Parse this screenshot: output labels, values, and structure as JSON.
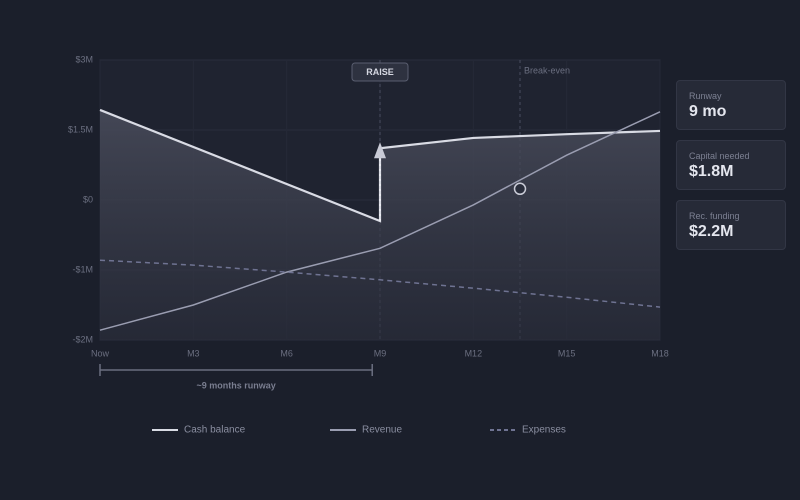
{
  "chart_data": {
    "type": "line",
    "xlim": [
      0,
      18
    ],
    "xticks": [
      {
        "value": 0,
        "label": "Now"
      },
      {
        "value": 3,
        "label": "M3"
      },
      {
        "value": 6,
        "label": "M6"
      },
      {
        "value": 9,
        "label": "M9"
      },
      {
        "value": 12,
        "label": "M12"
      },
      {
        "value": 15,
        "label": "M15"
      },
      {
        "value": 18,
        "label": "M18"
      }
    ],
    "ylim": [
      -2,
      3
    ],
    "yticks": [
      {
        "value": -2,
        "label": "-$2M"
      },
      {
        "value": -1,
        "label": "-$1M"
      },
      {
        "value": 0,
        "label": "$0"
      },
      {
        "value": 1.5,
        "label": "$1.5M"
      },
      {
        "value": 3,
        "label": "$3M"
      }
    ],
    "grid": true,
    "series": [
      {
        "name": "Cash balance",
        "color": "#d9dbe4",
        "dash": false,
        "area": true,
        "x": [
          0,
          9,
          9,
          12,
          15,
          18
        ],
        "values": [
          1.93,
          -0.3,
          1.11,
          1.33,
          1.41,
          1.48
        ]
      },
      {
        "name": "Revenue",
        "color": "#9a9db1",
        "dash": false,
        "area": false,
        "x": [
          0,
          3,
          6,
          9,
          12,
          15,
          18
        ],
        "values": [
          -1.86,
          -1.5,
          -1.03,
          -0.69,
          -0.07,
          0.96,
          1.89
        ]
      },
      {
        "name": "Expenses",
        "color": "#6f7392",
        "dash": true,
        "area": false,
        "x": [
          0,
          3,
          6,
          9,
          12,
          15,
          18
        ],
        "values": [
          -0.86,
          -0.93,
          -1.03,
          -1.14,
          -1.26,
          -1.39,
          -1.53
        ]
      }
    ],
    "annotations": {
      "raise": {
        "text": "RAISE",
        "x": 9
      },
      "break_even": {
        "text": "Break-even",
        "x": 13.5,
        "y": 0.24
      },
      "runway": {
        "text": "~9 months runway",
        "xrange": [
          0,
          8.75
        ]
      }
    }
  },
  "cards": [
    {
      "label": "Runway",
      "value": "9 mo"
    },
    {
      "label": "Capital needed",
      "value": "$1.8M"
    },
    {
      "label": "Rec. funding",
      "value": "$2.2M"
    }
  ]
}
